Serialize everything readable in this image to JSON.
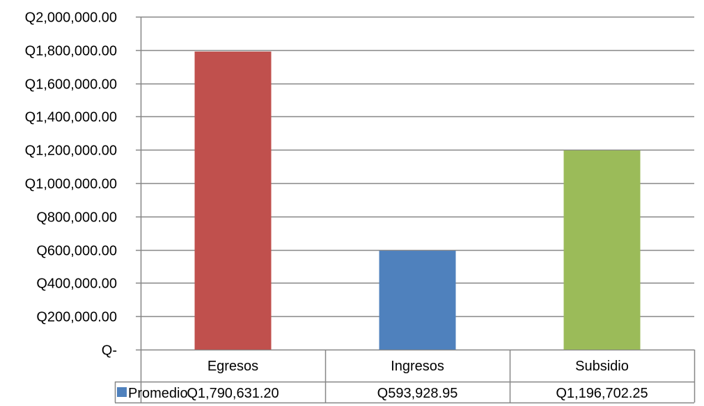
{
  "chart_data": {
    "type": "bar",
    "categories": [
      "Egresos",
      "Ingresos",
      "Subsidio"
    ],
    "series": [
      {
        "name": "Promedio",
        "values": [
          1790631.2,
          593928.95,
          1196702.25
        ],
        "value_labels": [
          "Q1,790,631.20",
          "Q593,928.95",
          "Q1,196,702.25"
        ]
      }
    ],
    "bar_colors": [
      "#c0504d",
      "#4f81bd",
      "#9bbb59"
    ],
    "legend_color": "#4f81bd",
    "ylim": [
      0,
      2000000
    ],
    "yticks": [
      0,
      200000,
      400000,
      600000,
      800000,
      1000000,
      1200000,
      1400000,
      1600000,
      1800000,
      2000000
    ],
    "ytick_labels": [
      "Q-",
      "Q200,000.00",
      "Q400,000.00",
      "Q600,000.00",
      "Q800,000.00",
      "Q1,000,000.00",
      "Q1,200,000.00",
      "Q1,400,000.00",
      "Q1,600,000.00",
      "Q1,800,000.00",
      "Q2,000,000.00"
    ],
    "grid": true,
    "data_table": true,
    "title": "",
    "xlabel": "",
    "ylabel": ""
  }
}
